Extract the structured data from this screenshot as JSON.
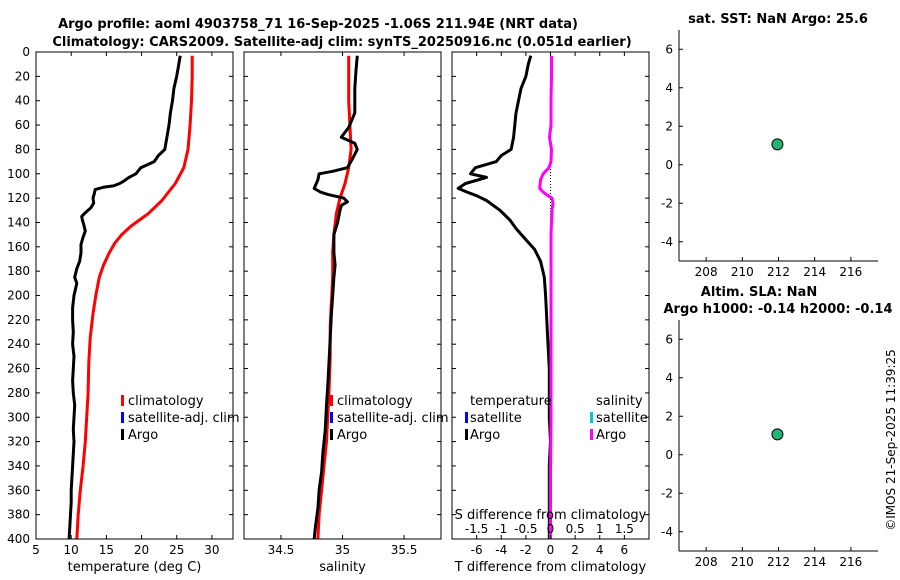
{
  "header": {
    "title_line1": "Argo profile: aoml 4903758_71 16-Sep-2025 -1.06S 211.94E (NRT data)",
    "title_line2": "Climatology: CARS2009. Satellite-adj clim: synTS_20250916.nc (0.051d earlier)"
  },
  "footer": {
    "stamp": "©IMOS 21-Sep-2025 11:39:25"
  },
  "colors": {
    "climatology": "#ff0000",
    "satellite": "#0000ff",
    "argo": "#000000",
    "salinity_diff": "#ff00ff",
    "salinity_sat": "#00cccc",
    "marker": "#22b573"
  },
  "chart_data": [
    {
      "id": "temperature",
      "type": "line",
      "xlabel": "temperature (deg C)",
      "xlim": [
        5,
        33
      ],
      "ylim": [
        400,
        0
      ],
      "xticks": [
        5,
        10,
        15,
        20,
        25,
        30
      ],
      "yticks": [
        0,
        20,
        40,
        60,
        80,
        100,
        120,
        140,
        160,
        180,
        200,
        220,
        240,
        260,
        280,
        300,
        320,
        340,
        360,
        380,
        400
      ],
      "legend": [
        "climatology",
        "satellite-adj. clim",
        "Argo"
      ],
      "series": [
        {
          "name": "climatology",
          "color": "#ff0000",
          "points": [
            [
              27.2,
              3
            ],
            [
              27.2,
              20
            ],
            [
              27.1,
              40
            ],
            [
              26.9,
              60
            ],
            [
              26.6,
              80
            ],
            [
              26,
              95
            ],
            [
              24.8,
              108
            ],
            [
              22.9,
              122
            ],
            [
              20.9,
              133
            ],
            [
              18.5,
              143
            ],
            [
              17.2,
              150
            ],
            [
              16.2,
              157
            ],
            [
              15.4,
              165
            ],
            [
              14.6,
              175
            ],
            [
              14,
              185
            ],
            [
              13.5,
              200
            ],
            [
              13.1,
              215
            ],
            [
              12.7,
              235
            ],
            [
              12.5,
              255
            ],
            [
              12.4,
              280
            ],
            [
              12.2,
              300
            ],
            [
              12,
              320
            ],
            [
              11.7,
              340
            ],
            [
              11.3,
              360
            ],
            [
              11,
              380
            ],
            [
              10.8,
              400
            ]
          ]
        },
        {
          "name": "Argo",
          "color": "#000000",
          "points": [
            [
              25.5,
              3
            ],
            [
              25.3,
              10
            ],
            [
              25,
              20
            ],
            [
              24.6,
              30
            ],
            [
              24.4,
              40
            ],
            [
              24.1,
              50
            ],
            [
              23.9,
              60
            ],
            [
              23.6,
              70
            ],
            [
              23.3,
              80
            ],
            [
              22.4,
              85
            ],
            [
              21.8,
              90
            ],
            [
              19.9,
              95
            ],
            [
              19.2,
              100
            ],
            [
              18.2,
              103
            ],
            [
              17.5,
              106
            ],
            [
              16.9,
              108
            ],
            [
              16,
              110
            ],
            [
              14.7,
              111
            ],
            [
              13.4,
              113
            ],
            [
              13.3,
              116
            ],
            [
              13.1,
              120
            ],
            [
              13.2,
              124
            ],
            [
              12.8,
              128
            ],
            [
              12,
              132
            ],
            [
              11.5,
              135
            ],
            [
              11.6,
              138
            ],
            [
              11.8,
              142
            ],
            [
              12,
              147
            ],
            [
              11.7,
              152
            ],
            [
              11.4,
              158
            ],
            [
              11.4,
              165
            ],
            [
              11.2,
              172
            ],
            [
              10.8,
              178
            ],
            [
              10.5,
              185
            ],
            [
              10.8,
              190
            ],
            [
              10.6,
              195
            ],
            [
              10.4,
              200
            ],
            [
              10.2,
              210
            ],
            [
              10.2,
              220
            ],
            [
              10.3,
              230
            ],
            [
              10.2,
              240
            ],
            [
              10.4,
              250
            ],
            [
              10.3,
              260
            ],
            [
              10.2,
              270
            ],
            [
              10.3,
              280
            ],
            [
              10.5,
              290
            ],
            [
              10.4,
              300
            ],
            [
              10.3,
              310
            ],
            [
              10.4,
              320
            ],
            [
              10.3,
              330
            ],
            [
              10.2,
              340
            ],
            [
              10.1,
              350
            ],
            [
              10,
              360
            ],
            [
              10,
              370
            ],
            [
              9.9,
              380
            ],
            [
              9.8,
              390
            ],
            [
              9.7,
              400
            ]
          ]
        }
      ]
    },
    {
      "id": "salinity",
      "type": "line",
      "xlabel": "salinity",
      "xlim": [
        34.2,
        35.8
      ],
      "ylim": [
        400,
        0
      ],
      "xticks": [
        34.5,
        35,
        35.5
      ],
      "legend": [
        "climatology",
        "satellite-adj. clim",
        "Argo"
      ],
      "series": [
        {
          "name": "climatology",
          "color": "#ff0000",
          "points": [
            [
              35.05,
              3
            ],
            [
              35.05,
              20
            ],
            [
              35.05,
              40
            ],
            [
              35.06,
              60
            ],
            [
              35.07,
              80
            ],
            [
              35.05,
              95
            ],
            [
              35.02,
              108
            ],
            [
              34.98,
              120
            ],
            [
              34.95,
              133
            ],
            [
              34.93,
              150
            ],
            [
              34.92,
              165
            ],
            [
              34.92,
              185
            ],
            [
              34.91,
              205
            ],
            [
              34.9,
              225
            ],
            [
              34.9,
              250
            ],
            [
              34.89,
              280
            ],
            [
              34.88,
              300
            ],
            [
              34.87,
              320
            ],
            [
              34.85,
              340
            ],
            [
              34.83,
              360
            ],
            [
              34.81,
              380
            ],
            [
              34.8,
              400
            ]
          ]
        },
        {
          "name": "Argo",
          "color": "#000000",
          "points": [
            [
              35.12,
              3
            ],
            [
              35.11,
              15
            ],
            [
              35.1,
              30
            ],
            [
              35.1,
              50
            ],
            [
              35.05,
              62
            ],
            [
              34.99,
              70
            ],
            [
              35.1,
              75
            ],
            [
              35.12,
              80
            ],
            [
              35.08,
              88
            ],
            [
              35.04,
              95
            ],
            [
              34.92,
              98
            ],
            [
              34.81,
              100
            ],
            [
              34.8,
              105
            ],
            [
              34.77,
              112
            ],
            [
              34.82,
              115
            ],
            [
              34.88,
              117
            ],
            [
              35.01,
              120
            ],
            [
              35.04,
              123
            ],
            [
              34.99,
              126
            ],
            [
              34.98,
              130
            ],
            [
              34.96,
              140
            ],
            [
              34.93,
              150
            ],
            [
              34.93,
              165
            ],
            [
              34.94,
              175
            ],
            [
              34.93,
              185
            ],
            [
              34.92,
              200
            ],
            [
              34.91,
              215
            ],
            [
              34.9,
              235
            ],
            [
              34.89,
              255
            ],
            [
              34.88,
              275
            ],
            [
              34.87,
              290
            ],
            [
              34.86,
              310
            ],
            [
              34.84,
              330
            ],
            [
              34.83,
              345
            ],
            [
              34.81,
              360
            ],
            [
              34.8,
              375
            ],
            [
              34.78,
              390
            ],
            [
              34.77,
              400
            ]
          ]
        }
      ]
    },
    {
      "id": "difference",
      "type": "line",
      "xlabel": "T difference from climatology",
      "xlabel_top": "S difference from climatology",
      "xlim": [
        -8,
        8
      ],
      "ylim": [
        400,
        0
      ],
      "xticks": [
        -6,
        -4,
        -2,
        0,
        2,
        4,
        6
      ],
      "xticks_top": [
        -1.5,
        -1,
        -0.5,
        0,
        0.5,
        1,
        1.5
      ],
      "legend_temperature_title": "temperature",
      "legend_salinity_title": "salinity",
      "legend_items": [
        "satellite",
        "Argo"
      ],
      "series": [
        {
          "name": "T difference (Argo)",
          "color": "#000000",
          "points": [
            [
              -1.6,
              3
            ],
            [
              -1.8,
              10
            ],
            [
              -2,
              20
            ],
            [
              -2.4,
              30
            ],
            [
              -2.6,
              40
            ],
            [
              -2.8,
              50
            ],
            [
              -2.9,
              60
            ],
            [
              -3,
              70
            ],
            [
              -3.2,
              80
            ],
            [
              -4,
              85
            ],
            [
              -4.4,
              90
            ],
            [
              -6.1,
              95
            ],
            [
              -6.5,
              100
            ],
            [
              -5.2,
              103
            ],
            [
              -6.9,
              108
            ],
            [
              -7.5,
              112
            ],
            [
              -6.8,
              115
            ],
            [
              -6,
              118
            ],
            [
              -5.2,
              122
            ],
            [
              -4.1,
              130
            ],
            [
              -3.3,
              138
            ],
            [
              -2.8,
              145
            ],
            [
              -2.1,
              153
            ],
            [
              -1.3,
              162
            ],
            [
              -0.8,
              172
            ],
            [
              -0.5,
              185
            ],
            [
              -0.4,
              200
            ],
            [
              -0.3,
              220
            ],
            [
              -0.2,
              240
            ],
            [
              -0.1,
              260
            ],
            [
              -0.1,
              280
            ],
            [
              -0.1,
              300
            ],
            [
              0,
              320
            ],
            [
              -0.1,
              340
            ],
            [
              -0.1,
              360
            ],
            [
              -0.1,
              380
            ],
            [
              -0.1,
              400
            ]
          ]
        },
        {
          "name": "S difference (Argo)",
          "color": "#ff00ff",
          "points": [
            [
              0.02,
              3
            ],
            [
              0.02,
              20
            ],
            [
              0.01,
              40
            ],
            [
              0.01,
              60
            ],
            [
              -0.02,
              70
            ],
            [
              0.02,
              80
            ],
            [
              0.01,
              90
            ],
            [
              -0.03,
              95
            ],
            [
              -0.15,
              100
            ],
            [
              -0.2,
              105
            ],
            [
              -0.22,
              112
            ],
            [
              -0.15,
              115
            ],
            [
              -0.05,
              118
            ],
            [
              0.03,
              120
            ],
            [
              0.05,
              124
            ],
            [
              0.03,
              130
            ],
            [
              0.02,
              140
            ],
            [
              0.01,
              150
            ],
            [
              0.01,
              165
            ],
            [
              0.01,
              180
            ],
            [
              0.01,
              200
            ],
            [
              0.01,
              250
            ],
            [
              0.01,
              300
            ],
            [
              0,
              350
            ],
            [
              0,
              400
            ]
          ]
        }
      ]
    },
    {
      "id": "sst",
      "type": "scatter",
      "title": "sat. SST: NaN Argo: 25.6",
      "xlim": [
        206.5,
        217.5
      ],
      "ylim": [
        -5,
        7
      ],
      "xticks": [
        208,
        210,
        212,
        214,
        216
      ],
      "yticks": [
        -4,
        -2,
        0,
        2,
        4,
        6
      ],
      "points": [
        [
          211.94,
          1.06
        ]
      ]
    },
    {
      "id": "sla",
      "type": "scatter",
      "title_line1": "Altim. SLA: NaN",
      "title_line2": "Argo h1000: -0.14 h2000: -0.14",
      "xlim": [
        206.5,
        217.5
      ],
      "ylim": [
        -5,
        7
      ],
      "xticks": [
        208,
        210,
        212,
        214,
        216
      ],
      "yticks": [
        -4,
        -2,
        0,
        2,
        4,
        6
      ],
      "points": [
        [
          211.94,
          1.06
        ]
      ]
    }
  ]
}
